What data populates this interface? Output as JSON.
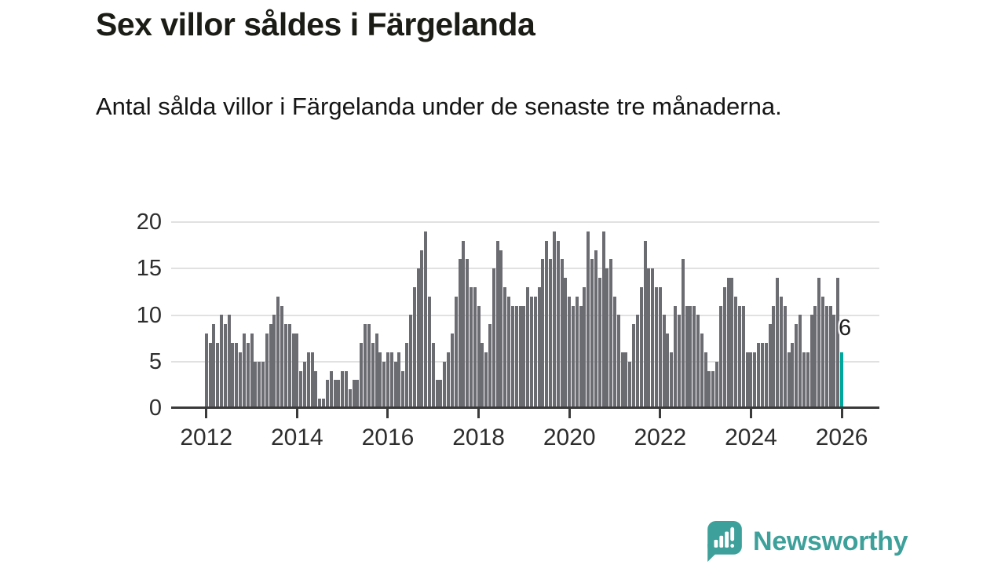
{
  "header": {
    "title": "Sex villor såldes i Färgelanda",
    "subtitle": "Antal sålda villor i Färgelanda under de senaste tre månaderna."
  },
  "chart_data": {
    "type": "bar",
    "title": "Sex villor såldes i Färgelanda",
    "xlabel": "",
    "ylabel": "",
    "x_tick_labels": [
      "2012",
      "2014",
      "2016",
      "2018",
      "2020",
      "2022",
      "2024",
      "2026"
    ],
    "y_ticks": [
      0,
      5,
      10,
      15,
      20
    ],
    "ylim": [
      0,
      20
    ],
    "grid": "horizontal",
    "legend": "none",
    "frequency": "monthly",
    "x_range_start": "2012",
    "x_range_end": "2026",
    "values": [
      8,
      7,
      9,
      7,
      10,
      9,
      10,
      7,
      7,
      6,
      8,
      7,
      8,
      5,
      5,
      5,
      8,
      9,
      10,
      12,
      11,
      9,
      9,
      8,
      8,
      4,
      5,
      6,
      6,
      4,
      1,
      1,
      3,
      4,
      3,
      3,
      4,
      4,
      2,
      3,
      3,
      7,
      9,
      9,
      7,
      8,
      6,
      5,
      6,
      6,
      5,
      6,
      4,
      7,
      10,
      13,
      15,
      17,
      19,
      12,
      7,
      3,
      3,
      5,
      6,
      8,
      12,
      16,
      18,
      16,
      13,
      13,
      11,
      7,
      6,
      9,
      15,
      18,
      17,
      13,
      12,
      11,
      11,
      11,
      11,
      13,
      12,
      12,
      13,
      16,
      18,
      16,
      19,
      18,
      16,
      14,
      12,
      11,
      12,
      11,
      13,
      19,
      16,
      17,
      14,
      19,
      15,
      16,
      12,
      10,
      6,
      6,
      5,
      9,
      10,
      13,
      18,
      15,
      15,
      13,
      13,
      10,
      8,
      6,
      11,
      10,
      16,
      11,
      11,
      11,
      10,
      8,
      6,
      4,
      4,
      5,
      11,
      13,
      14,
      14,
      12,
      11,
      11,
      6,
      6,
      6,
      7,
      7,
      7,
      9,
      11,
      14,
      12,
      11,
      6,
      7,
      9,
      10,
      6,
      6,
      10,
      11,
      14,
      12,
      11,
      11,
      10,
      14,
      6
    ],
    "highlight": {
      "index": 168,
      "label": "6"
    }
  },
  "annotation": {
    "last_value_label": "6"
  },
  "branding": {
    "logo_text": "Newsworthy",
    "logo_icon": "speech-bubble-bar-chart-icon"
  },
  "colors": {
    "bar": "#6b6b72",
    "highlight_bar": "#00a79c",
    "brand_teal": "#3ea09a",
    "gridline": "#e1e1e1",
    "axis": "#3a3a3a",
    "text": "#1b1c15"
  }
}
